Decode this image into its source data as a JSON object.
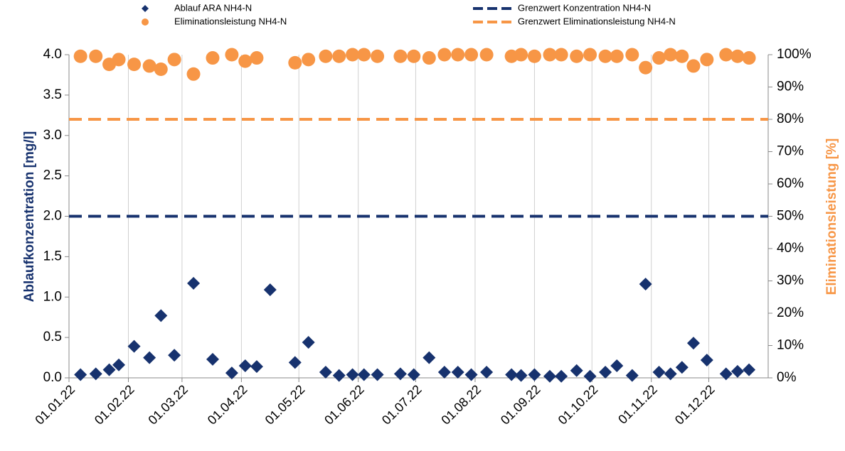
{
  "chart_data": {
    "type": "scatter",
    "x": [
      "2022-01-07",
      "2022-01-15",
      "2022-01-22",
      "2022-01-27",
      "2022-02-04",
      "2022-02-12",
      "2022-02-18",
      "2022-02-25",
      "2022-03-07",
      "2022-03-17",
      "2022-03-27",
      "2022-04-03",
      "2022-04-09",
      "2022-04-16",
      "2022-04-29",
      "2022-05-06",
      "2022-05-15",
      "2022-05-22",
      "2022-05-29",
      "2022-06-04",
      "2022-06-11",
      "2022-06-23",
      "2022-06-30",
      "2022-07-08",
      "2022-07-16",
      "2022-07-23",
      "2022-07-30",
      "2022-08-07",
      "2022-08-20",
      "2022-08-25",
      "2022-09-01",
      "2022-09-09",
      "2022-09-15",
      "2022-09-23",
      "2022-09-30",
      "2022-10-08",
      "2022-10-14",
      "2022-10-22",
      "2022-10-29",
      "2022-11-05",
      "2022-11-11",
      "2022-11-17",
      "2022-11-23",
      "2022-11-30",
      "2022-12-10",
      "2022-12-16",
      "2022-12-22"
    ],
    "series": [
      {
        "name": "Ablauf ARA NH4-N",
        "color": "#17326e",
        "marker": "diamond",
        "axis": "y",
        "values": [
          0.04,
          0.05,
          0.1,
          0.16,
          0.39,
          0.25,
          0.77,
          0.28,
          1.17,
          0.23,
          0.06,
          0.15,
          0.14,
          1.09,
          0.19,
          0.44,
          0.07,
          0.03,
          0.04,
          0.04,
          0.04,
          0.05,
          0.04,
          0.25,
          0.07,
          0.07,
          0.04,
          0.07,
          0.04,
          0.03,
          0.04,
          0.02,
          0.02,
          0.09,
          0.02,
          0.07,
          0.15,
          0.03,
          1.16,
          0.07,
          0.05,
          0.13,
          0.43,
          0.22,
          0.05,
          0.08,
          0.1
        ]
      },
      {
        "name": "Eliminationsleistung NH4-N",
        "color": "#f79646",
        "marker": "circle",
        "axis": "y2",
        "values": [
          99.5,
          99.5,
          97,
          98.5,
          97,
          96.5,
          95.5,
          98.5,
          94,
          99,
          100,
          98,
          99,
          null,
          97.5,
          98.5,
          99.5,
          99.5,
          100,
          100,
          99.5,
          99.5,
          99.5,
          99,
          100,
          100,
          100,
          100,
          99.5,
          100,
          99.5,
          100,
          100,
          99.5,
          100,
          99.5,
          99.5,
          100,
          96,
          99,
          100,
          99.5,
          96.5,
          98.5,
          100,
          99.5,
          99
        ]
      }
    ],
    "limit_lines": [
      {
        "name": "Grenzwert Konzentration NH4-N",
        "color": "#17326e",
        "axis": "y",
        "value": 2.0
      },
      {
        "name": "Grenzwert Eliminationsleistung NH4-N",
        "color": "#f79646",
        "axis": "y2",
        "value": 80
      }
    ],
    "ylabel": "Ablaufkonzentration [mg/l]",
    "y2label": "Eliminationsleistung [%]",
    "xlim": [
      "2022-01-01",
      "2023-01-01"
    ],
    "xticks": [
      {
        "value": "2022-01-01",
        "label": "01.01.22"
      },
      {
        "value": "2022-02-01",
        "label": "01.02.22"
      },
      {
        "value": "2022-03-01",
        "label": "01.03.22"
      },
      {
        "value": "2022-04-01",
        "label": "01.04.22"
      },
      {
        "value": "2022-05-01",
        "label": "01.05.22"
      },
      {
        "value": "2022-06-01",
        "label": "01.06.22"
      },
      {
        "value": "2022-07-01",
        "label": "01.07.22"
      },
      {
        "value": "2022-08-01",
        "label": "01.08.22"
      },
      {
        "value": "2022-09-01",
        "label": "01.09.22"
      },
      {
        "value": "2022-10-01",
        "label": "01.10.22"
      },
      {
        "value": "2022-11-01",
        "label": "01.11.22"
      },
      {
        "value": "2022-12-01",
        "label": "01.12.22"
      }
    ],
    "ylim": [
      0,
      4
    ],
    "yticks": [
      {
        "value": 0,
        "label": "0.0"
      },
      {
        "value": 0.5,
        "label": "0.5"
      },
      {
        "value": 1,
        "label": "1.0"
      },
      {
        "value": 1.5,
        "label": "1.5"
      },
      {
        "value": 2,
        "label": "2.0"
      },
      {
        "value": 2.5,
        "label": "2.5"
      },
      {
        "value": 3,
        "label": "3.0"
      },
      {
        "value": 3.5,
        "label": "3.5"
      },
      {
        "value": 4,
        "label": "4.0"
      }
    ],
    "y2lim": [
      0,
      100
    ],
    "y2ticks": [
      {
        "value": 0,
        "label": "0%"
      },
      {
        "value": 10,
        "label": "10%"
      },
      {
        "value": 20,
        "label": "20%"
      },
      {
        "value": 30,
        "label": "30%"
      },
      {
        "value": 40,
        "label": "40%"
      },
      {
        "value": 50,
        "label": "50%"
      },
      {
        "value": 60,
        "label": "60%"
      },
      {
        "value": 70,
        "label": "70%"
      },
      {
        "value": 80,
        "label": "80%"
      },
      {
        "value": 90,
        "label": "90%"
      },
      {
        "value": 100,
        "label": "100%"
      }
    ],
    "grid": "x"
  }
}
